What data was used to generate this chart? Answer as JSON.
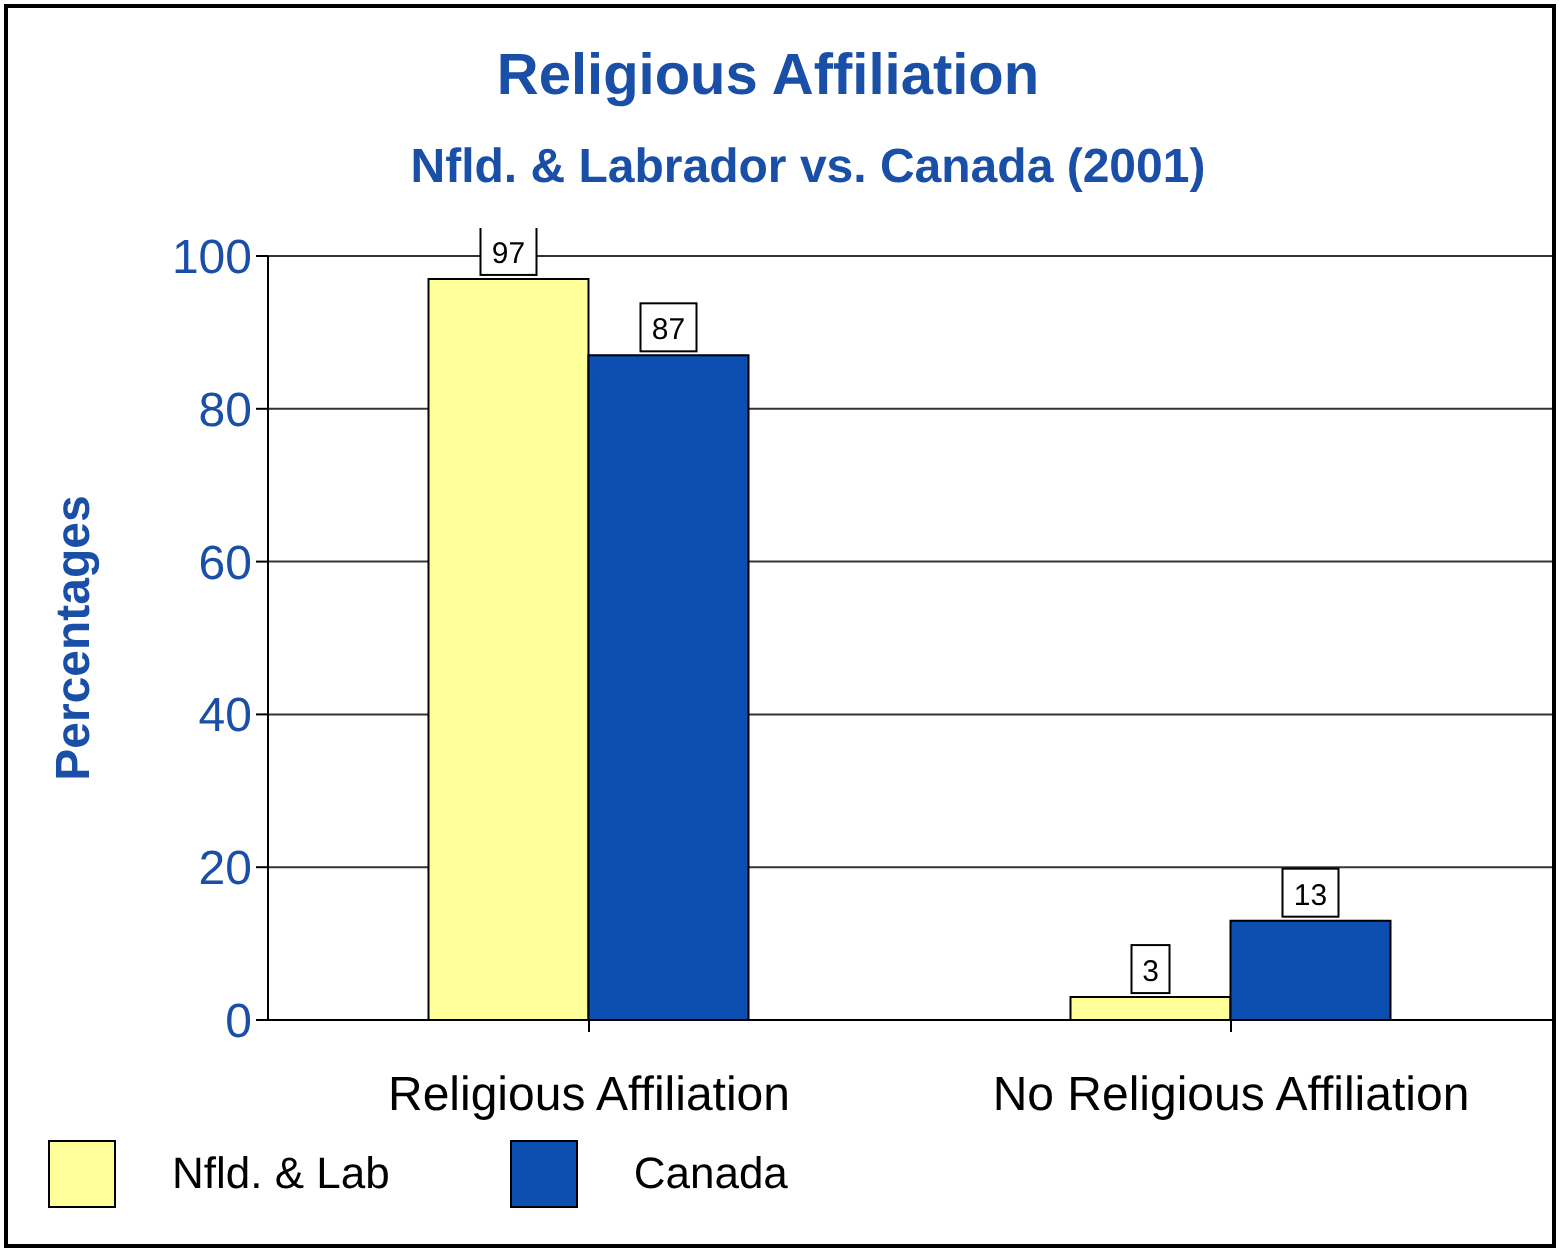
{
  "chart_data": {
    "type": "bar",
    "title": "Religious Affiliation",
    "subtitle": "Nfld. & Labrador vs. Canada (2001)",
    "ylabel": "Percentages",
    "categories": [
      "Religious Affiliation",
      "No Religious Affiliation"
    ],
    "series": [
      {
        "name": "Nfld. & Lab",
        "color": "#ffff99",
        "values": [
          97,
          3
        ]
      },
      {
        "name": "Canada",
        "color": "#0d4fb0",
        "values": [
          87,
          13
        ]
      }
    ],
    "ylim": [
      0,
      100
    ],
    "yticks": [
      0,
      20,
      40,
      60,
      80,
      100
    ],
    "grid": "y",
    "legend": "bottom",
    "data_labels": true
  }
}
